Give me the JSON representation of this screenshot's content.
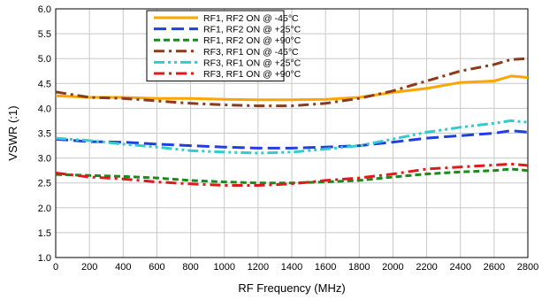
{
  "chart_data": {
    "type": "line",
    "title": "",
    "xlabel": "RF Frequency (MHz)",
    "ylabel": "VSWR (:1)",
    "xlim": [
      0,
      2800
    ],
    "ylim": [
      1.0,
      6.0
    ],
    "xticks": [
      0,
      200,
      400,
      600,
      800,
      1000,
      1200,
      1400,
      1600,
      1800,
      2000,
      2200,
      2400,
      2600,
      2800
    ],
    "yticks": [
      "1.0",
      "1.5",
      "2.0",
      "2.5",
      "3.0",
      "3.5",
      "4.0",
      "4.5",
      "5.0",
      "5.5",
      "6.0"
    ],
    "grid": true,
    "legend_position": "top-center",
    "x": [
      0,
      200,
      400,
      600,
      800,
      1000,
      1200,
      1400,
      1600,
      1800,
      2000,
      2200,
      2400,
      2600,
      2700,
      2800
    ],
    "series": [
      {
        "name": "RF1, RF2 ON @ -45°C",
        "color": "#FFA500",
        "dash": "solid",
        "values": [
          4.25,
          4.22,
          4.22,
          4.2,
          4.2,
          4.18,
          4.17,
          4.17,
          4.18,
          4.22,
          4.32,
          4.4,
          4.52,
          4.55,
          4.65,
          4.62
        ]
      },
      {
        "name": "RF1, RF2 ON @ +25°C",
        "color": "#1F3FE0",
        "dash": "long-dash",
        "values": [
          3.38,
          3.33,
          3.32,
          3.28,
          3.25,
          3.22,
          3.2,
          3.2,
          3.22,
          3.25,
          3.32,
          3.4,
          3.45,
          3.5,
          3.55,
          3.52
        ]
      },
      {
        "name": "RF1, RF2 ON @ +90°C",
        "color": "#1A8A1A",
        "dash": "dash",
        "values": [
          2.67,
          2.65,
          2.63,
          2.6,
          2.55,
          2.52,
          2.5,
          2.5,
          2.52,
          2.55,
          2.62,
          2.68,
          2.72,
          2.75,
          2.78,
          2.75
        ]
      },
      {
        "name": "RF3, RF1 ON @ -45°C",
        "color": "#8B3A1A",
        "dash": "dash-dot",
        "values": [
          4.33,
          4.22,
          4.2,
          4.15,
          4.1,
          4.07,
          4.05,
          4.05,
          4.1,
          4.2,
          4.35,
          4.55,
          4.75,
          4.88,
          4.98,
          5.0
        ]
      },
      {
        "name": "RF3, RF1 ON @ +25°C",
        "color": "#33CCCC",
        "dash": "dash-dot-dot",
        "values": [
          3.4,
          3.35,
          3.28,
          3.22,
          3.15,
          3.12,
          3.1,
          3.12,
          3.18,
          3.25,
          3.38,
          3.52,
          3.62,
          3.7,
          3.75,
          3.72
        ]
      },
      {
        "name": "RF3, RF1 ON @ +90°C",
        "color": "#E01A1A",
        "dash": "dash-dot",
        "values": [
          2.7,
          2.62,
          2.58,
          2.52,
          2.48,
          2.45,
          2.45,
          2.48,
          2.55,
          2.6,
          2.68,
          2.78,
          2.82,
          2.86,
          2.88,
          2.85
        ]
      }
    ]
  }
}
